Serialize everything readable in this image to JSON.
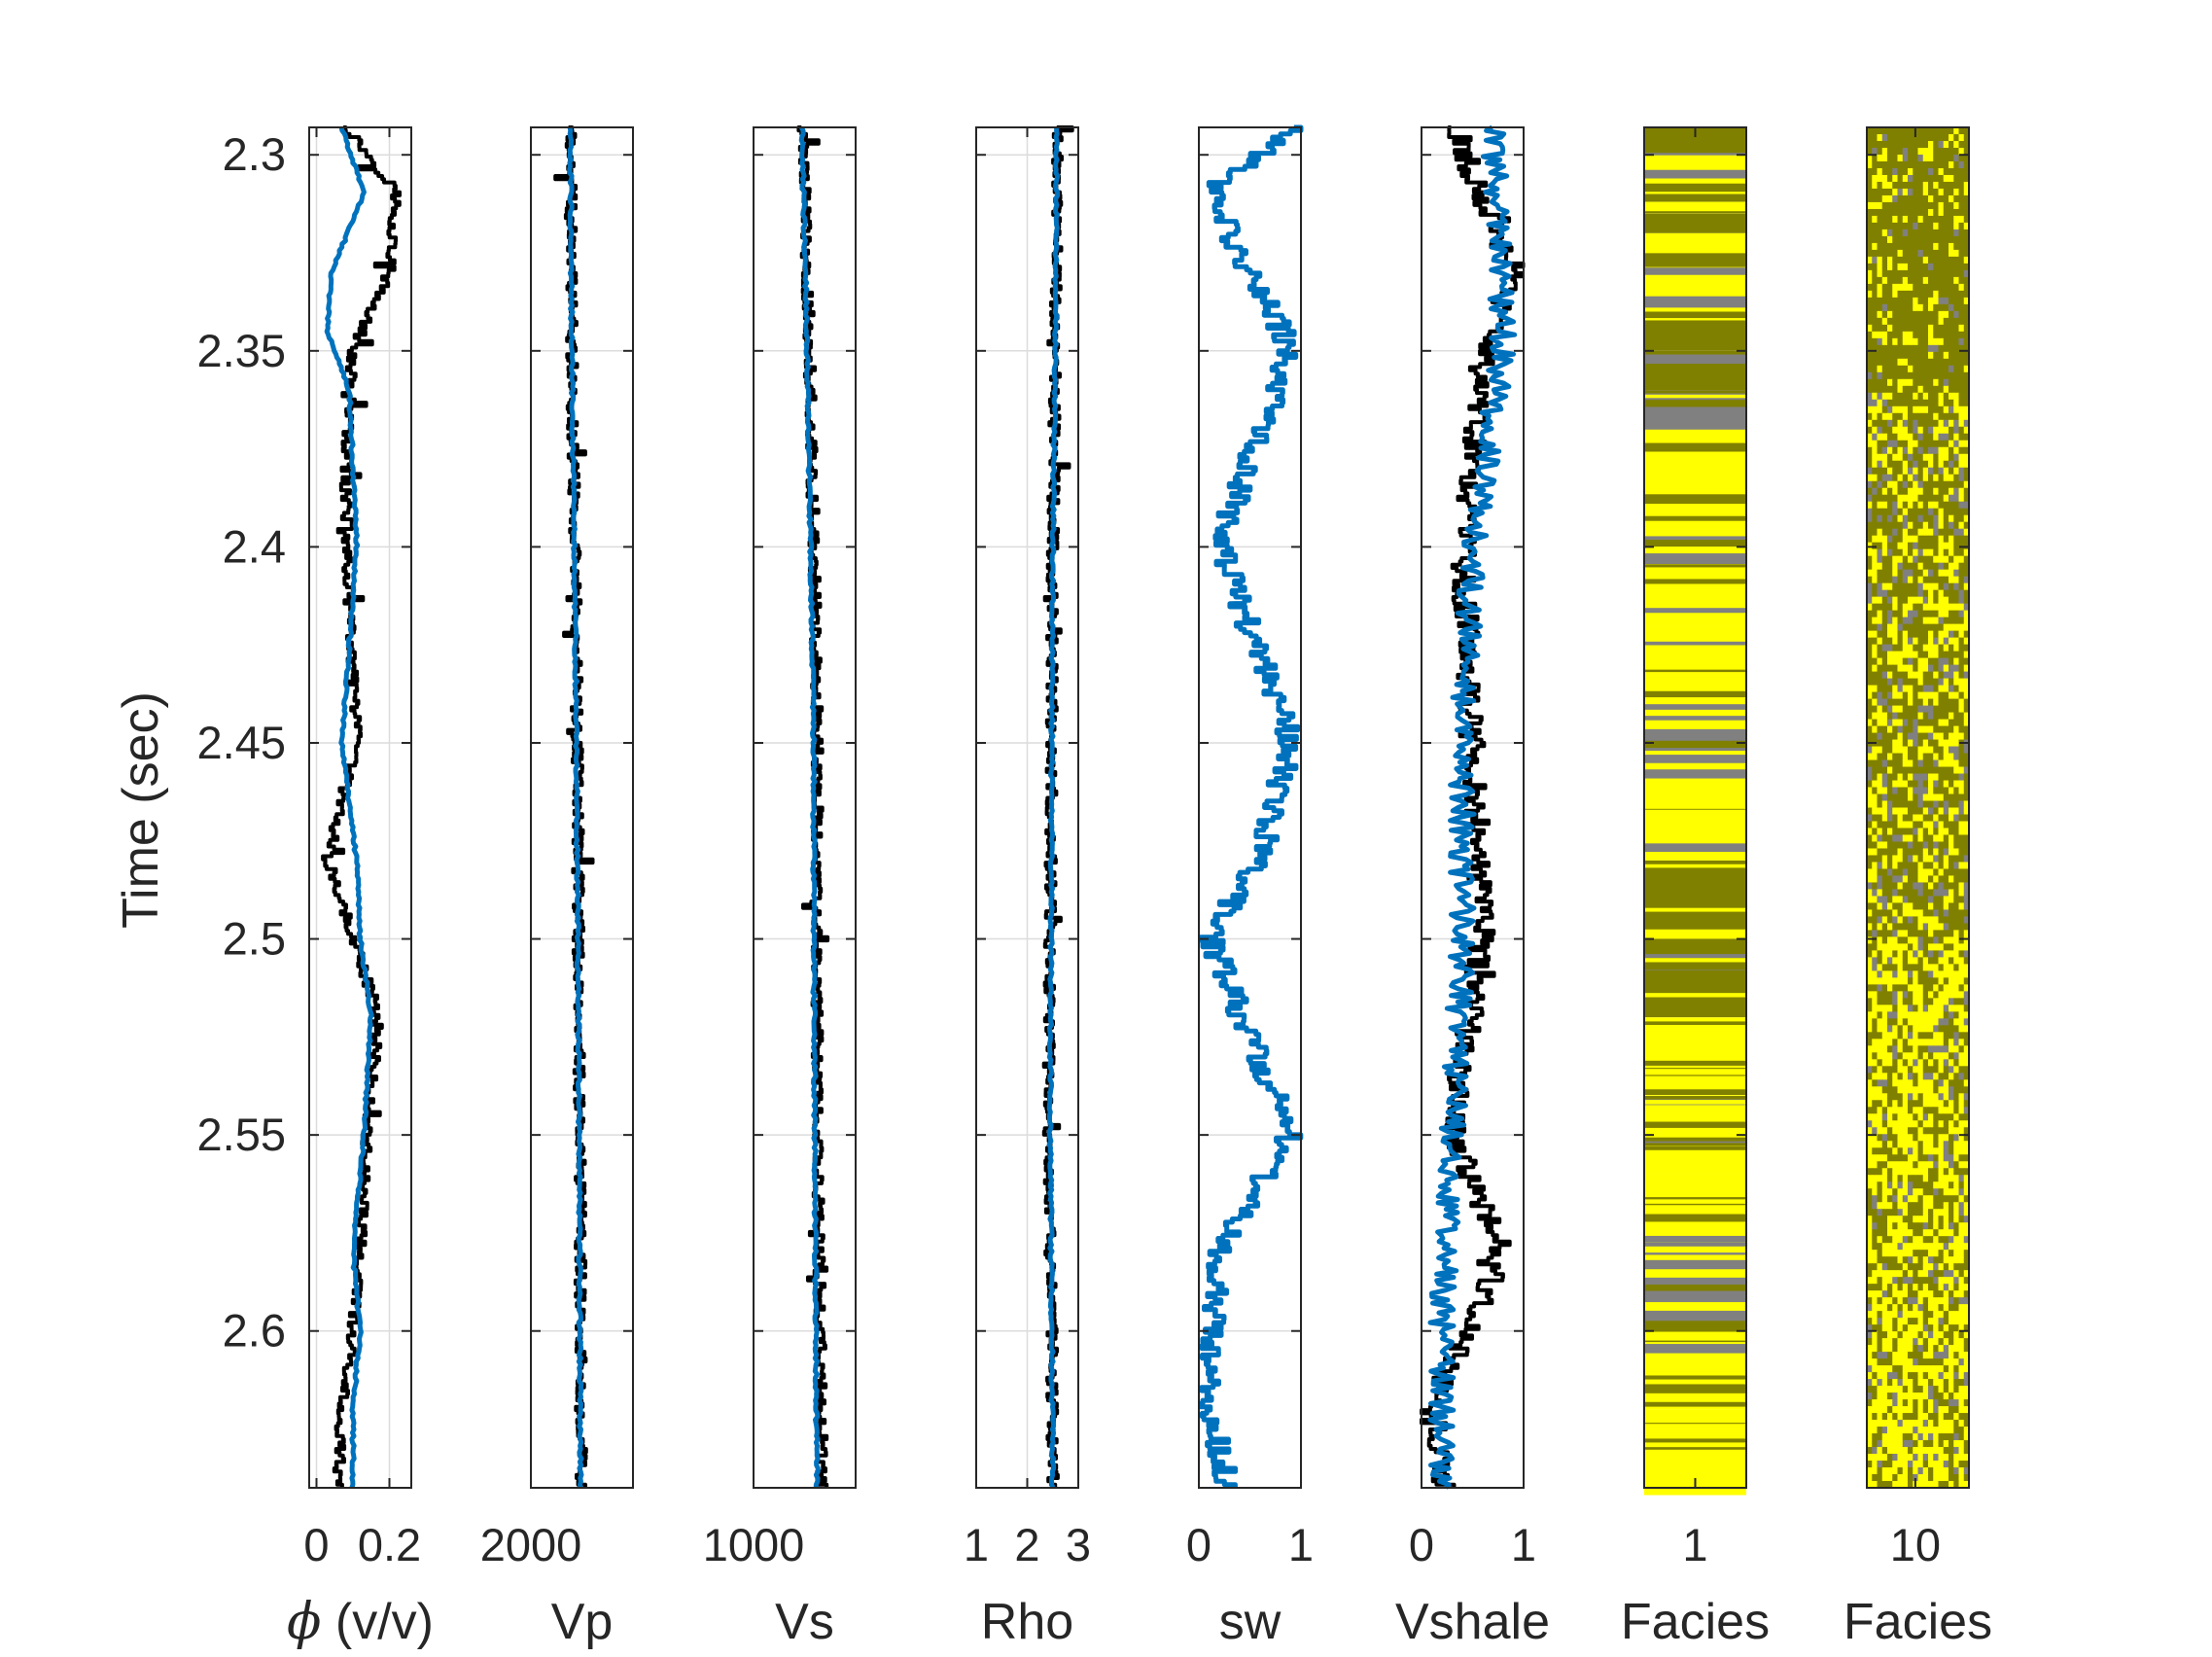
{
  "figure": {
    "ylabel": "Time (sec)",
    "yticks": [
      2.3,
      2.35,
      2.4,
      2.45,
      2.5,
      2.55,
      2.6
    ],
    "ylim": [
      2.293,
      2.64
    ],
    "colors": {
      "estimate": "#0072BD",
      "reference": "#000000",
      "facies_sand": "#FFFF00",
      "facies_shale": "#808000",
      "facies_other": "#808080",
      "axis": "#262626",
      "grid": "#DCDCDC"
    }
  },
  "chart_data": [
    {
      "type": "line",
      "xlabel": "ϕ (v/v)",
      "xlabel_symbol": "ϕ",
      "xlabel_rest": " (v/v)",
      "xlim": [
        -0.02,
        0.26
      ],
      "xticks": [
        0,
        0.2
      ],
      "xtick_labels": [
        "0",
        "0.2"
      ],
      "grid": true,
      "series": [
        {
          "role": "reference",
          "color": "#000000",
          "t": [
            2.293,
            2.31,
            2.33,
            2.35,
            2.38,
            2.42,
            2.45,
            2.48,
            2.5,
            2.52,
            2.55,
            2.58,
            2.6,
            2.62,
            2.64
          ],
          "values": [
            0.08,
            0.22,
            0.2,
            0.1,
            0.08,
            0.09,
            0.11,
            0.03,
            0.1,
            0.17,
            0.14,
            0.12,
            0.1,
            0.07,
            0.06
          ]
        },
        {
          "role": "estimate",
          "color": "#0072BD",
          "t": [
            2.293,
            2.31,
            2.33,
            2.345,
            2.36,
            2.4,
            2.45,
            2.48,
            2.5,
            2.52,
            2.55,
            2.58,
            2.6,
            2.62,
            2.64
          ],
          "values": [
            0.07,
            0.13,
            0.04,
            0.03,
            0.09,
            0.11,
            0.07,
            0.11,
            0.12,
            0.15,
            0.13,
            0.1,
            0.12,
            0.1,
            0.1
          ]
        }
      ]
    },
    {
      "type": "line",
      "xlabel": "Vp",
      "xlim": [
        2000,
        3500
      ],
      "xticks": [
        2000
      ],
      "xtick_labels": [
        "2000"
      ],
      "grid": true,
      "series": [
        {
          "role": "reference",
          "color": "#000000",
          "t": [
            2.293,
            2.35,
            2.4,
            2.45,
            2.5,
            2.55,
            2.6,
            2.64
          ],
          "values": [
            2580,
            2600,
            2650,
            2680,
            2700,
            2720,
            2730,
            2740
          ]
        },
        {
          "role": "estimate",
          "color": "#0072BD",
          "t": [
            2.293,
            2.35,
            2.4,
            2.45,
            2.5,
            2.55,
            2.6,
            2.64
          ],
          "values": [
            2580,
            2600,
            2640,
            2670,
            2690,
            2710,
            2720,
            2730
          ]
        }
      ]
    },
    {
      "type": "line",
      "xlabel": "Vs",
      "xlim": [
        1000,
        1950
      ],
      "xticks": [
        1000
      ],
      "xtick_labels": [
        "1000"
      ],
      "grid": true,
      "series": [
        {
          "role": "reference",
          "color": "#000000",
          "t": [
            2.293,
            2.35,
            2.4,
            2.45,
            2.5,
            2.55,
            2.6,
            2.64
          ],
          "values": [
            1460,
            1520,
            1560,
            1600,
            1580,
            1600,
            1620,
            1640
          ]
        },
        {
          "role": "estimate",
          "color": "#0072BD",
          "t": [
            2.293,
            2.35,
            2.4,
            2.45,
            2.5,
            2.55,
            2.6,
            2.64
          ],
          "values": [
            1450,
            1500,
            1530,
            1560,
            1560,
            1570,
            1580,
            1590
          ]
        }
      ]
    },
    {
      "type": "line",
      "xlabel": "Rho",
      "xlim": [
        1,
        3
      ],
      "xticks": [
        1,
        2,
        3
      ],
      "xtick_labels": [
        "1",
        "2",
        "3"
      ],
      "grid": true,
      "series": [
        {
          "role": "reference",
          "color": "#000000",
          "t": [
            2.293,
            2.35,
            2.4,
            2.45,
            2.5,
            2.55,
            2.6,
            2.64
          ],
          "values": [
            2.6,
            2.55,
            2.5,
            2.48,
            2.45,
            2.4,
            2.48,
            2.5
          ]
        },
        {
          "role": "estimate",
          "color": "#0072BD",
          "t": [
            2.293,
            2.35,
            2.4,
            2.45,
            2.5,
            2.55,
            2.6,
            2.64
          ],
          "values": [
            2.58,
            2.55,
            2.5,
            2.48,
            2.47,
            2.45,
            2.48,
            2.5
          ]
        }
      ]
    },
    {
      "type": "line",
      "xlabel": "sw",
      "xlim": [
        0,
        1
      ],
      "xticks": [
        0,
        1
      ],
      "xtick_labels": [
        "0",
        "1"
      ],
      "grid": true,
      "series": [
        {
          "role": "estimate",
          "color": "#0072BD",
          "t": [
            2.293,
            2.31,
            2.35,
            2.4,
            2.45,
            2.48,
            2.5,
            2.55,
            2.58,
            2.62,
            2.64
          ],
          "values": [
            0.95,
            0.1,
            0.9,
            0.2,
            0.9,
            0.6,
            0.1,
            0.9,
            0.2,
            0.1,
            0.3
          ]
        }
      ]
    },
    {
      "type": "line",
      "xlabel": "Vshale",
      "xlim": [
        0,
        1
      ],
      "xticks": [
        0,
        1
      ],
      "xtick_labels": [
        "0",
        "1"
      ],
      "grid": true,
      "series": [
        {
          "role": "reference",
          "color": "#000000",
          "t": [
            2.293,
            2.33,
            2.35,
            2.4,
            2.45,
            2.5,
            2.55,
            2.58,
            2.62,
            2.64
          ],
          "values": [
            0.3,
            0.9,
            0.6,
            0.4,
            0.5,
            0.6,
            0.3,
            0.8,
            0.1,
            0.2
          ]
        },
        {
          "role": "estimate",
          "color": "#0072BD",
          "t": [
            2.293,
            2.32,
            2.35,
            2.4,
            2.45,
            2.5,
            2.55,
            2.6,
            2.64
          ],
          "values": [
            0.7,
            0.75,
            0.8,
            0.5,
            0.4,
            0.4,
            0.3,
            0.2,
            0.2
          ]
        }
      ]
    },
    {
      "type": "heatmap",
      "xlabel": "Facies",
      "xticks": [
        1
      ],
      "xtick_labels": [
        "1"
      ],
      "xlim": [
        0.5,
        1.5
      ],
      "categories": [
        "sand",
        "shale",
        "other"
      ],
      "t": [
        2.293,
        2.3,
        2.31,
        2.312,
        2.315,
        2.32,
        2.33,
        2.34,
        2.35,
        2.36,
        2.37,
        2.4,
        2.42,
        2.44,
        2.46,
        2.48,
        2.5,
        2.52,
        2.54,
        2.56,
        2.58,
        2.6,
        2.62,
        2.64
      ],
      "classes": [
        "shale",
        "sand",
        "shale",
        "sand",
        "shale",
        "sand",
        "sand",
        "shale",
        "shale",
        "other",
        "sand",
        "sand",
        "sand",
        "other",
        "sand",
        "shale",
        "shale",
        "sand",
        "sand",
        "sand",
        "other",
        "sand",
        "sand"
      ]
    },
    {
      "type": "heatmap",
      "xlabel": "Facies",
      "xticks": [
        10
      ],
      "xtick_labels": [
        "10"
      ],
      "xlim": [
        0.5,
        20.5
      ],
      "rows": 200,
      "columns": 20,
      "categories": [
        "sand",
        "shale",
        "other"
      ],
      "zone_t": [
        2.293,
        2.36,
        2.5,
        2.64
      ],
      "zone_proportions": [
        [
          0.2,
          0.75,
          0.05
        ],
        [
          0.35,
          0.5,
          0.15
        ],
        [
          0.55,
          0.35,
          0.1
        ]
      ]
    }
  ]
}
